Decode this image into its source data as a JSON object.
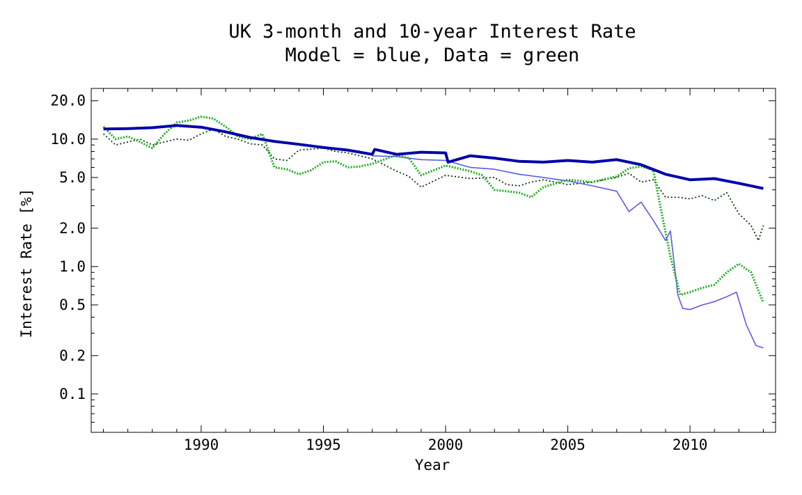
{
  "chart_data": {
    "type": "line",
    "title": "UK 3-month and 10-year Interest Rate",
    "subtitle": "Model = blue, Data = green",
    "xlabel": "Year",
    "ylabel": "Interest Rate [%]",
    "xlim": [
      1985.5,
      2013.5
    ],
    "ylim": [
      0.05,
      25
    ],
    "yscale": "log",
    "grid": false,
    "legend": "none",
    "x_ticks": [
      1990,
      1995,
      2000,
      2005,
      2010
    ],
    "x_tick_labels": [
      "1990",
      "1995",
      "2000",
      "2005",
      "2010"
    ],
    "y_ticks": [
      0.1,
      0.2,
      0.5,
      1.0,
      2.0,
      5.0,
      10.0,
      20.0
    ],
    "y_tick_labels": [
      "0.1",
      "0.2",
      "0.5",
      "1.0",
      "2.0",
      "5.0",
      "10.0",
      "20.0"
    ],
    "colors": {
      "model_10y": "#0000a8",
      "model_3m": "#5a5ae6",
      "data_3m": "#22b022",
      "data_10y": "#003300"
    },
    "series": [
      {
        "key": "model_10y",
        "x": [
          1986.0,
          1987.0,
          1988.0,
          1989.0,
          1990.0,
          1991.0,
          1992.0,
          1993.0,
          1994.0,
          1995.0,
          1996.0,
          1997.0,
          1997.1,
          1998.0,
          1999.0,
          2000.0,
          2000.1,
          2001.0,
          2002.0,
          2003.0,
          2004.0,
          2005.0,
          2006.0,
          2007.0,
          2008.0,
          2009.0,
          2010.0,
          2011.0,
          2012.0,
          2013.0
        ],
        "values": [
          12.0,
          12.1,
          12.3,
          12.8,
          12.4,
          11.4,
          10.3,
          9.6,
          9.1,
          8.6,
          8.2,
          7.6,
          8.3,
          7.6,
          7.9,
          7.8,
          6.6,
          7.4,
          7.1,
          6.7,
          6.6,
          6.8,
          6.6,
          6.9,
          6.3,
          5.3,
          4.8,
          4.9,
          4.5,
          4.1
        ]
      },
      {
        "key": "model_3m",
        "x": [
          1997.0,
          1998.0,
          1999.0,
          2000.0,
          2001.0,
          2002.0,
          2003.0,
          2004.0,
          2005.0,
          2006.0,
          2007.0,
          2007.5,
          2008.0,
          2008.5,
          2009.0,
          2009.2,
          2009.5,
          2009.7,
          2010.0,
          2010.5,
          2011.0,
          2011.5,
          2011.9,
          2012.3,
          2012.7,
          2013.0
        ],
        "values": [
          7.4,
          7.3,
          6.9,
          6.8,
          6.0,
          5.8,
          5.3,
          5.0,
          4.7,
          4.3,
          3.9,
          2.7,
          3.2,
          2.3,
          1.6,
          1.9,
          0.6,
          0.47,
          0.46,
          0.5,
          0.53,
          0.58,
          0.63,
          0.35,
          0.24,
          0.23
        ]
      },
      {
        "key": "data_3m",
        "x": [
          1986.0,
          1986.5,
          1987.0,
          1987.5,
          1988.0,
          1988.5,
          1989.0,
          1989.5,
          1990.0,
          1990.5,
          1991.0,
          1991.5,
          1992.0,
          1992.5,
          1993.0,
          1993.5,
          1994.0,
          1994.5,
          1995.0,
          1995.5,
          1996.0,
          1996.5,
          1997.0,
          1998.0,
          1998.5,
          1999.0,
          2000.0,
          2001.0,
          2001.5,
          2002.0,
          2003.0,
          2003.5,
          2004.0,
          2005.0,
          2006.0,
          2007.0,
          2007.5,
          2008.0,
          2008.5,
          2008.9,
          2009.2,
          2009.6,
          2010.0,
          2010.5,
          2011.0,
          2011.5,
          2012.0,
          2012.5,
          2013.0
        ],
        "values": [
          12.5,
          10.0,
          10.5,
          9.5,
          8.5,
          11.0,
          13.5,
          14.0,
          15.0,
          14.5,
          12.5,
          10.5,
          10.0,
          11.0,
          6.0,
          5.8,
          5.3,
          5.7,
          6.6,
          6.7,
          6.0,
          6.1,
          6.4,
          7.5,
          7.1,
          5.2,
          6.2,
          5.6,
          5.2,
          4.0,
          3.8,
          3.5,
          4.2,
          4.8,
          4.6,
          5.1,
          5.9,
          6.1,
          5.7,
          2.3,
          1.2,
          0.6,
          0.63,
          0.68,
          0.72,
          0.9,
          1.05,
          0.9,
          0.52
        ]
      },
      {
        "key": "data_10y",
        "x": [
          1986.0,
          1986.5,
          1987.0,
          1987.5,
          1988.0,
          1988.5,
          1989.0,
          1989.5,
          1990.0,
          1990.5,
          1991.0,
          1991.5,
          1992.0,
          1992.5,
          1993.0,
          1993.5,
          1994.0,
          1995.0,
          1995.5,
          1996.0,
          1997.0,
          1998.0,
          1998.5,
          1999.0,
          2000.0,
          2001.0,
          2002.0,
          2002.5,
          2003.0,
          2003.5,
          2004.0,
          2005.0,
          2006.0,
          2007.0,
          2007.5,
          2008.0,
          2008.5,
          2009.0,
          2009.5,
          2010.0,
          2010.5,
          2011.0,
          2011.5,
          2012.0,
          2012.5,
          2012.8,
          2013.0
        ],
        "values": [
          11.0,
          9.0,
          9.5,
          10.0,
          9.0,
          9.5,
          10.0,
          9.8,
          11.0,
          12.0,
          10.5,
          10.0,
          9.2,
          9.0,
          7.0,
          6.8,
          8.2,
          8.5,
          8.0,
          7.8,
          7.0,
          5.6,
          5.1,
          4.2,
          5.2,
          4.9,
          5.0,
          4.4,
          4.3,
          4.6,
          4.8,
          4.4,
          4.6,
          5.0,
          5.4,
          4.6,
          4.8,
          3.5,
          3.5,
          3.4,
          3.6,
          3.3,
          3.8,
          2.6,
          2.1,
          1.6,
          2.1
        ]
      }
    ]
  }
}
